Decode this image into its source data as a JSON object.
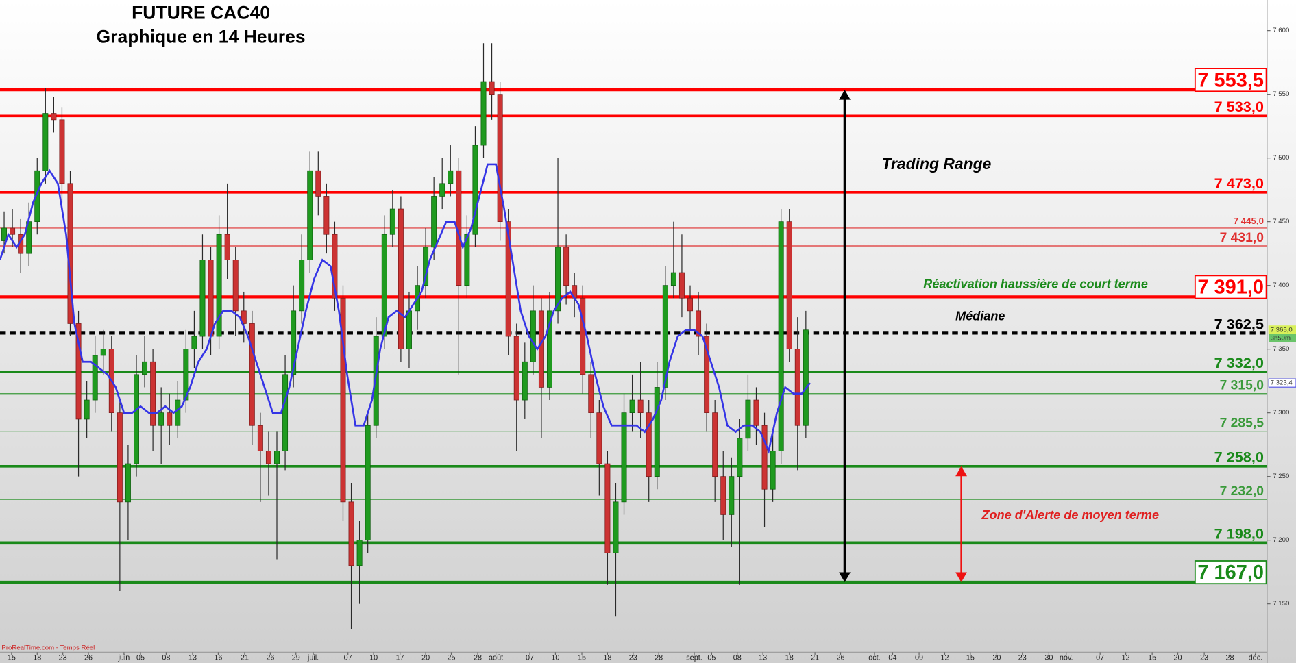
{
  "chart_data": {
    "type": "candlestick",
    "title": "FUTURE CAC40",
    "subtitle": "Graphique en 14 Heures",
    "source": "ProRealTime.com - Temps Réel",
    "annotations": [
      "Trading Range",
      "Réactivation haussière de court terme",
      "Médiane",
      "Zone d'Alerte de moyen terme"
    ],
    "up_color": "#1f9a1f",
    "down_color": "#cc3333",
    "xlim": [
      0,
      306.6
    ],
    "ylim": [
      7112,
      7624
    ],
    "yticks": [
      {
        "value": 7150,
        "label": "7 150"
      },
      {
        "value": 7200,
        "label": "7 200"
      },
      {
        "value": 7250,
        "label": "7 250"
      },
      {
        "value": 7300,
        "label": "7 300"
      },
      {
        "value": 7350,
        "label": "7 350"
      },
      {
        "value": 7400,
        "label": "7 400"
      },
      {
        "value": 7450,
        "label": "7 450"
      },
      {
        "value": 7500,
        "label": "7 500"
      },
      {
        "value": 7550,
        "label": "7 550"
      },
      {
        "value": 7600,
        "label": "7 600"
      }
    ],
    "xticks": [
      {
        "value": 2.8,
        "label": "15"
      },
      {
        "value": 9,
        "label": "18"
      },
      {
        "value": 15.2,
        "label": "23"
      },
      {
        "value": 21.4,
        "label": "26"
      },
      {
        "value": 30,
        "label": "juin"
      },
      {
        "value": 34,
        "label": "05"
      },
      {
        "value": 40.2,
        "label": "08"
      },
      {
        "value": 46.6,
        "label": "13"
      },
      {
        "value": 52.8,
        "label": "16"
      },
      {
        "value": 59.2,
        "label": "21"
      },
      {
        "value": 65.4,
        "label": "26"
      },
      {
        "value": 71.6,
        "label": "29"
      },
      {
        "value": 75.8,
        "label": "juil."
      },
      {
        "value": 84.2,
        "label": "07"
      },
      {
        "value": 90.4,
        "label": "10"
      },
      {
        "value": 96.8,
        "label": "17"
      },
      {
        "value": 103,
        "label": "20"
      },
      {
        "value": 109.2,
        "label": "25"
      },
      {
        "value": 115.6,
        "label": "28"
      },
      {
        "value": 120,
        "label": "août"
      },
      {
        "value": 128.2,
        "label": "07"
      },
      {
        "value": 134.4,
        "label": "10"
      },
      {
        "value": 140.8,
        "label": "15"
      },
      {
        "value": 147,
        "label": "18"
      },
      {
        "value": 153.2,
        "label": "23"
      },
      {
        "value": 159.4,
        "label": "28"
      },
      {
        "value": 168,
        "label": "sept."
      },
      {
        "value": 172.2,
        "label": "05"
      },
      {
        "value": 178.4,
        "label": "08"
      },
      {
        "value": 184.6,
        "label": "13"
      },
      {
        "value": 191,
        "label": "18"
      },
      {
        "value": 197.2,
        "label": "21"
      },
      {
        "value": 203.4,
        "label": "26"
      },
      {
        "value": 211.6,
        "label": "oct."
      },
      {
        "value": 216,
        "label": "04"
      },
      {
        "value": 222.4,
        "label": "09"
      },
      {
        "value": 228.6,
        "label": "12"
      },
      {
        "value": 234.8,
        "label": "15"
      },
      {
        "value": 241.2,
        "label": "20"
      },
      {
        "value": 247.4,
        "label": "23"
      },
      {
        "value": 253.8,
        "label": "30"
      },
      {
        "value": 258,
        "label": "nov."
      },
      {
        "value": 266.2,
        "label": "07"
      },
      {
        "value": 272.4,
        "label": "12"
      },
      {
        "value": 278.8,
        "label": "15"
      },
      {
        "value": 285,
        "label": "20"
      },
      {
        "value": 291.4,
        "label": "23"
      },
      {
        "value": 297.6,
        "label": "28"
      },
      {
        "value": 303.8,
        "label": "déc."
      }
    ],
    "x": [
      1,
      3,
      5,
      7,
      9,
      11,
      13,
      15,
      17,
      19,
      21,
      23,
      25,
      27,
      29,
      31,
      33,
      35,
      37,
      39,
      41,
      43,
      45,
      47,
      49,
      51,
      53,
      55,
      57,
      59,
      61,
      63,
      65,
      67,
      69,
      71,
      73,
      75,
      77,
      79,
      81,
      83,
      85,
      87,
      89,
      91,
      93,
      95,
      97,
      99,
      101,
      103,
      105,
      107,
      109,
      111,
      113,
      115,
      117,
      119,
      121,
      123,
      125,
      127,
      129,
      131,
      133,
      135,
      137,
      139,
      141,
      143,
      145,
      147,
      149,
      151,
      153,
      155,
      157,
      159,
      161,
      163,
      165,
      167,
      169,
      171,
      173,
      175,
      177,
      179,
      181,
      183,
      185,
      187,
      189,
      191,
      193,
      195
    ],
    "open": [
      7435,
      7445,
      7440,
      7425,
      7450,
      7490,
      7535,
      7530,
      7480,
      7370,
      7295,
      7310,
      7345,
      7350,
      7300,
      7230,
      7260,
      7330,
      7340,
      7290,
      7300,
      7290,
      7310,
      7350,
      7360,
      7420,
      7360,
      7440,
      7420,
      7380,
      7370,
      7290,
      7270,
      7260,
      7270,
      7330,
      7380,
      7420,
      7490,
      7470,
      7440,
      7390,
      7230,
      7180,
      7200,
      7290,
      7360,
      7440,
      7460,
      7350,
      7380,
      7400,
      7430,
      7470,
      7480,
      7490,
      7400,
      7440,
      7510,
      7560,
      7550,
      7450,
      7360,
      7310,
      7340,
      7380,
      7320,
      7380,
      7430,
      7400,
      7390,
      7330,
      7300,
      7260,
      7190,
      7230,
      7300,
      7310,
      7300,
      7250,
      7320,
      7400,
      7410,
      7390,
      7380,
      7360,
      7300,
      7250,
      7220,
      7250,
      7280,
      7310,
      7290,
      7240,
      7270,
      7450,
      7350,
      7290
    ],
    "high": [
      7458,
      7460,
      7452,
      7465,
      7500,
      7555,
      7548,
      7540,
      7490,
      7380,
      7325,
      7360,
      7365,
      7360,
      7310,
      7275,
      7345,
      7360,
      7350,
      7320,
      7315,
      7325,
      7365,
      7380,
      7440,
      7430,
      7455,
      7480,
      7430,
      7395,
      7380,
      7300,
      7285,
      7285,
      7345,
      7400,
      7440,
      7505,
      7505,
      7480,
      7450,
      7400,
      7245,
      7215,
      7300,
      7375,
      7455,
      7475,
      7470,
      7395,
      7415,
      7445,
      7485,
      7500,
      7510,
      7500,
      7455,
      7525,
      7590,
      7590,
      7560,
      7460,
      7370,
      7355,
      7400,
      7390,
      7395,
      7500,
      7440,
      7410,
      7400,
      7340,
      7310,
      7270,
      7245,
      7315,
      7330,
      7340,
      7310,
      7340,
      7415,
      7450,
      7440,
      7400,
      7395,
      7370,
      7310,
      7270,
      7265,
      7295,
      7330,
      7320,
      7300,
      7285,
      7460,
      7460,
      7375,
      7380
    ],
    "low": [
      7425,
      7430,
      7410,
      7415,
      7440,
      7480,
      7520,
      7465,
      7360,
      7250,
      7280,
      7300,
      7330,
      7285,
      7160,
      7200,
      7250,
      7320,
      7270,
      7260,
      7275,
      7280,
      7300,
      7335,
      7350,
      7345,
      7350,
      7405,
      7360,
      7355,
      7275,
      7230,
      7235,
      7185,
      7255,
      7320,
      7370,
      7410,
      7455,
      7425,
      7380,
      7215,
      7130,
      7150,
      7190,
      7280,
      7350,
      7430,
      7340,
      7335,
      7365,
      7390,
      7420,
      7460,
      7470,
      7330,
      7390,
      7430,
      7500,
      7530,
      7435,
      7345,
      7270,
      7295,
      7330,
      7280,
      7310,
      7370,
      7385,
      7375,
      7315,
      7280,
      7235,
      7165,
      7140,
      7220,
      7285,
      7280,
      7230,
      7240,
      7310,
      7390,
      7375,
      7365,
      7345,
      7285,
      7230,
      7200,
      7195,
      7165,
      7270,
      7275,
      7210,
      7230,
      7260,
      7340,
      7255,
      7280
    ],
    "close": [
      7445,
      7440,
      7425,
      7450,
      7490,
      7535,
      7530,
      7480,
      7370,
      7295,
      7310,
      7345,
      7350,
      7300,
      7230,
      7260,
      7330,
      7340,
      7290,
      7300,
      7290,
      7310,
      7350,
      7360,
      7420,
      7360,
      7440,
      7420,
      7380,
      7370,
      7290,
      7270,
      7260,
      7270,
      7330,
      7380,
      7420,
      7490,
      7470,
      7440,
      7390,
      7230,
      7180,
      7200,
      7290,
      7360,
      7440,
      7460,
      7350,
      7380,
      7400,
      7430,
      7470,
      7480,
      7490,
      7400,
      7440,
      7510,
      7560,
      7550,
      7450,
      7360,
      7310,
      7340,
      7380,
      7320,
      7380,
      7430,
      7400,
      7390,
      7330,
      7300,
      7260,
      7190,
      7230,
      7300,
      7310,
      7300,
      7250,
      7320,
      7400,
      7410,
      7390,
      7380,
      7360,
      7300,
      7250,
      7220,
      7250,
      7280,
      7310,
      7290,
      7240,
      7270,
      7450,
      7350,
      7290,
      7365
    ],
    "line": {
      "color": "#3535e6",
      "x": [
        0,
        2,
        4,
        6,
        8,
        10,
        12,
        14,
        16,
        18,
        20,
        22,
        24,
        26,
        28,
        30,
        32,
        34,
        36,
        38,
        40,
        42,
        44,
        46,
        48,
        50,
        52,
        54,
        56,
        58,
        60,
        62,
        64,
        66,
        68,
        70,
        72,
        74,
        76,
        78,
        80,
        82,
        84,
        86,
        88,
        90,
        92,
        94,
        96,
        98,
        100,
        102,
        104,
        106,
        108,
        110,
        112,
        114,
        116,
        118,
        120,
        122,
        124,
        126,
        128,
        130,
        132,
        134,
        136,
        138,
        140,
        142,
        144,
        146,
        148,
        150,
        152,
        154,
        156,
        158,
        160,
        162,
        164,
        166,
        168,
        170,
        172,
        174,
        176,
        178,
        180,
        182,
        184,
        186,
        188,
        190,
        192,
        194,
        196
      ],
      "values": [
        7420,
        7440,
        7430,
        7440,
        7465,
        7480,
        7490,
        7480,
        7440,
        7370,
        7340,
        7340,
        7335,
        7330,
        7320,
        7300,
        7300,
        7305,
        7300,
        7300,
        7305,
        7300,
        7305,
        7320,
        7340,
        7350,
        7370,
        7380,
        7380,
        7375,
        7360,
        7340,
        7320,
        7300,
        7300,
        7320,
        7350,
        7380,
        7405,
        7420,
        7415,
        7380,
        7330,
        7290,
        7290,
        7310,
        7350,
        7375,
        7380,
        7375,
        7385,
        7395,
        7420,
        7435,
        7450,
        7450,
        7430,
        7445,
        7470,
        7495,
        7495,
        7460,
        7420,
        7380,
        7360,
        7350,
        7360,
        7380,
        7390,
        7395,
        7385,
        7360,
        7330,
        7305,
        7290,
        7290,
        7290,
        7290,
        7285,
        7295,
        7310,
        7340,
        7360,
        7365,
        7365,
        7360,
        7340,
        7320,
        7290,
        7285,
        7290,
        7290,
        7285,
        7270,
        7300,
        7320,
        7315,
        7315,
        7323.4
      ]
    },
    "levels": [
      {
        "value": 7553.5,
        "label": "7 553,5",
        "color": "#ff0000",
        "style": "boxed"
      },
      {
        "value": 7533,
        "label": "7 533,0",
        "color": "#ff0000",
        "style": "major"
      },
      {
        "value": 7473,
        "label": "7 473,0",
        "color": "#ff0000",
        "style": "major"
      },
      {
        "value": 7445,
        "label": "7 445,0",
        "color": "#e03030",
        "style": "small"
      },
      {
        "value": 7431,
        "label": "7 431,0",
        "color": "#e03030",
        "style": "minor"
      },
      {
        "value": 7391,
        "label": "7 391,0",
        "color": "#ff0000",
        "style": "boxed"
      },
      {
        "value": 7362.5,
        "label": "7 362,5",
        "color": "#000000",
        "style": "dashed"
      },
      {
        "value": 7332,
        "label": "7 332,0",
        "color": "#1a8a1a",
        "style": "major"
      },
      {
        "value": 7315,
        "label": "7 315,0",
        "color": "#3a9a3a",
        "style": "minor"
      },
      {
        "value": 7285.5,
        "label": "7 285,5",
        "color": "#3a9a3a",
        "style": "minor"
      },
      {
        "value": 7258,
        "label": "7 258,0",
        "color": "#1a8a1a",
        "style": "major"
      },
      {
        "value": 7232,
        "label": "7 232,0",
        "color": "#3a9a3a",
        "style": "minor"
      },
      {
        "value": 7198,
        "label": "7 198,0",
        "color": "#1a8a1a",
        "style": "major"
      },
      {
        "value": 7167,
        "label": "7 167,0",
        "color": "#1a8a1a",
        "style": "boxed"
      }
    ],
    "price_tags": [
      {
        "value": 7365,
        "label": "7 365,0",
        "color": "#d8f05a"
      },
      {
        "value": 7323.4,
        "label": "7 323,4",
        "color": "#3535e6"
      }
    ],
    "countdown": "3h50m"
  }
}
